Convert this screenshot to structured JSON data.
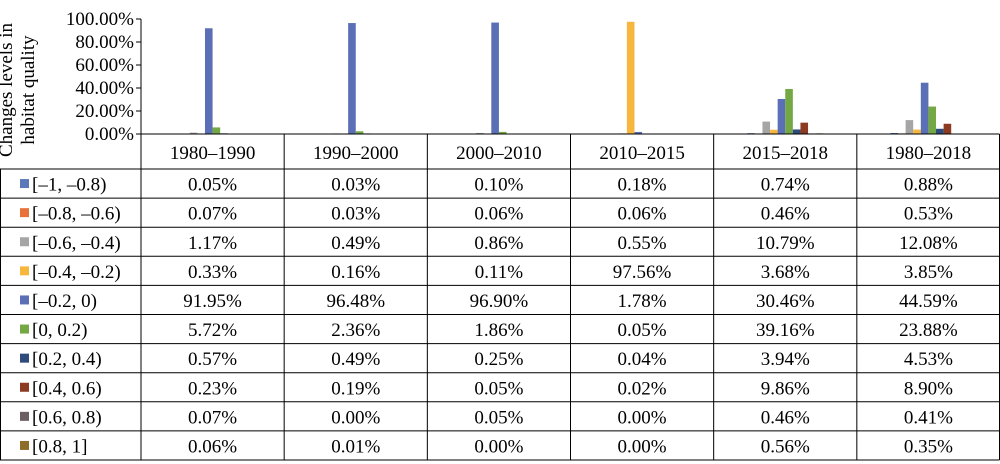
{
  "chart_data": {
    "type": "bar",
    "ylabel": "Changes levels in habitat quality",
    "ylim": [
      0,
      100
    ],
    "y_ticks": [
      "0.00%",
      "20.00%",
      "40.00%",
      "60.00%",
      "80.00%",
      "100.00%"
    ],
    "y_tick_values": [
      0,
      20,
      40,
      60,
      80,
      100
    ],
    "grid": false,
    "legend": "table-left",
    "categories": [
      "1980–1990",
      "1990–2000",
      "2000–2010",
      "2010–2015",
      "2015–2018",
      "1980–2018"
    ],
    "series": [
      {
        "name": "[–1, –0.8)",
        "color": "#5b79b8",
        "values": [
          0.05,
          0.03,
          0.1,
          0.18,
          0.74,
          0.88
        ],
        "labels": [
          "0.05%",
          "0.03%",
          "0.10%",
          "0.18%",
          "0.74%",
          "0.88%"
        ]
      },
      {
        "name": "[–0.8, –0.6)",
        "color": "#e8723a",
        "values": [
          0.07,
          0.03,
          0.06,
          0.06,
          0.46,
          0.53
        ],
        "labels": [
          "0.07%",
          "0.03%",
          "0.06%",
          "0.06%",
          "0.46%",
          "0.53%"
        ]
      },
      {
        "name": "[–0.6, –0.4)",
        "color": "#a5a5a5",
        "values": [
          1.17,
          0.49,
          0.86,
          0.55,
          10.79,
          12.08
        ],
        "labels": [
          "1.17%",
          "0.49%",
          "0.86%",
          "0.55%",
          "10.79%",
          "12.08%"
        ]
      },
      {
        "name": "[–0.4, –0.2)",
        "color": "#f7b73e",
        "values": [
          0.33,
          0.16,
          0.11,
          97.56,
          3.68,
          3.85
        ],
        "labels": [
          "0.33%",
          "0.16%",
          "0.11%",
          "97.56%",
          "3.68%",
          "3.85%"
        ]
      },
      {
        "name": "[–0.2, 0)",
        "color": "#5a6fb5",
        "values": [
          91.95,
          96.48,
          96.9,
          1.78,
          30.46,
          44.59
        ],
        "labels": [
          "91.95%",
          "96.48%",
          "96.90%",
          "1.78%",
          "30.46%",
          "44.59%"
        ]
      },
      {
        "name": "[0, 0.2)",
        "color": "#73a844",
        "values": [
          5.72,
          2.36,
          1.86,
          0.05,
          39.16,
          23.88
        ],
        "labels": [
          "5.72%",
          "2.36%",
          "1.86%",
          "0.05%",
          "39.16%",
          "23.88%"
        ]
      },
      {
        "name": "[0.2, 0.4)",
        "color": "#2f4b7c",
        "values": [
          0.57,
          0.49,
          0.25,
          0.04,
          3.94,
          4.53
        ],
        "labels": [
          "0.57%",
          "0.49%",
          "0.25%",
          "0.04%",
          "3.94%",
          "4.53%"
        ]
      },
      {
        "name": "[0.4, 0.6)",
        "color": "#8c3a22",
        "values": [
          0.23,
          0.19,
          0.05,
          0.02,
          9.86,
          8.9
        ],
        "labels": [
          "0.23%",
          "0.19%",
          "0.05%",
          "0.02%",
          "9.86%",
          "8.90%"
        ]
      },
      {
        "name": "[0.6, 0.8)",
        "color": "#6b5f63",
        "values": [
          0.07,
          0.0,
          0.05,
          0.0,
          0.46,
          0.41
        ],
        "labels": [
          "0.07%",
          "0.00%",
          "0.05%",
          "0.00%",
          "0.46%",
          "0.41%"
        ]
      },
      {
        "name": "[0.8, 1]",
        "color": "#8c6d2a",
        "values": [
          0.06,
          0.01,
          0.0,
          0.0,
          0.56,
          0.35
        ],
        "labels": [
          "0.06%",
          "0.01%",
          "0.00%",
          "0.00%",
          "0.56%",
          "0.35%"
        ]
      }
    ]
  }
}
